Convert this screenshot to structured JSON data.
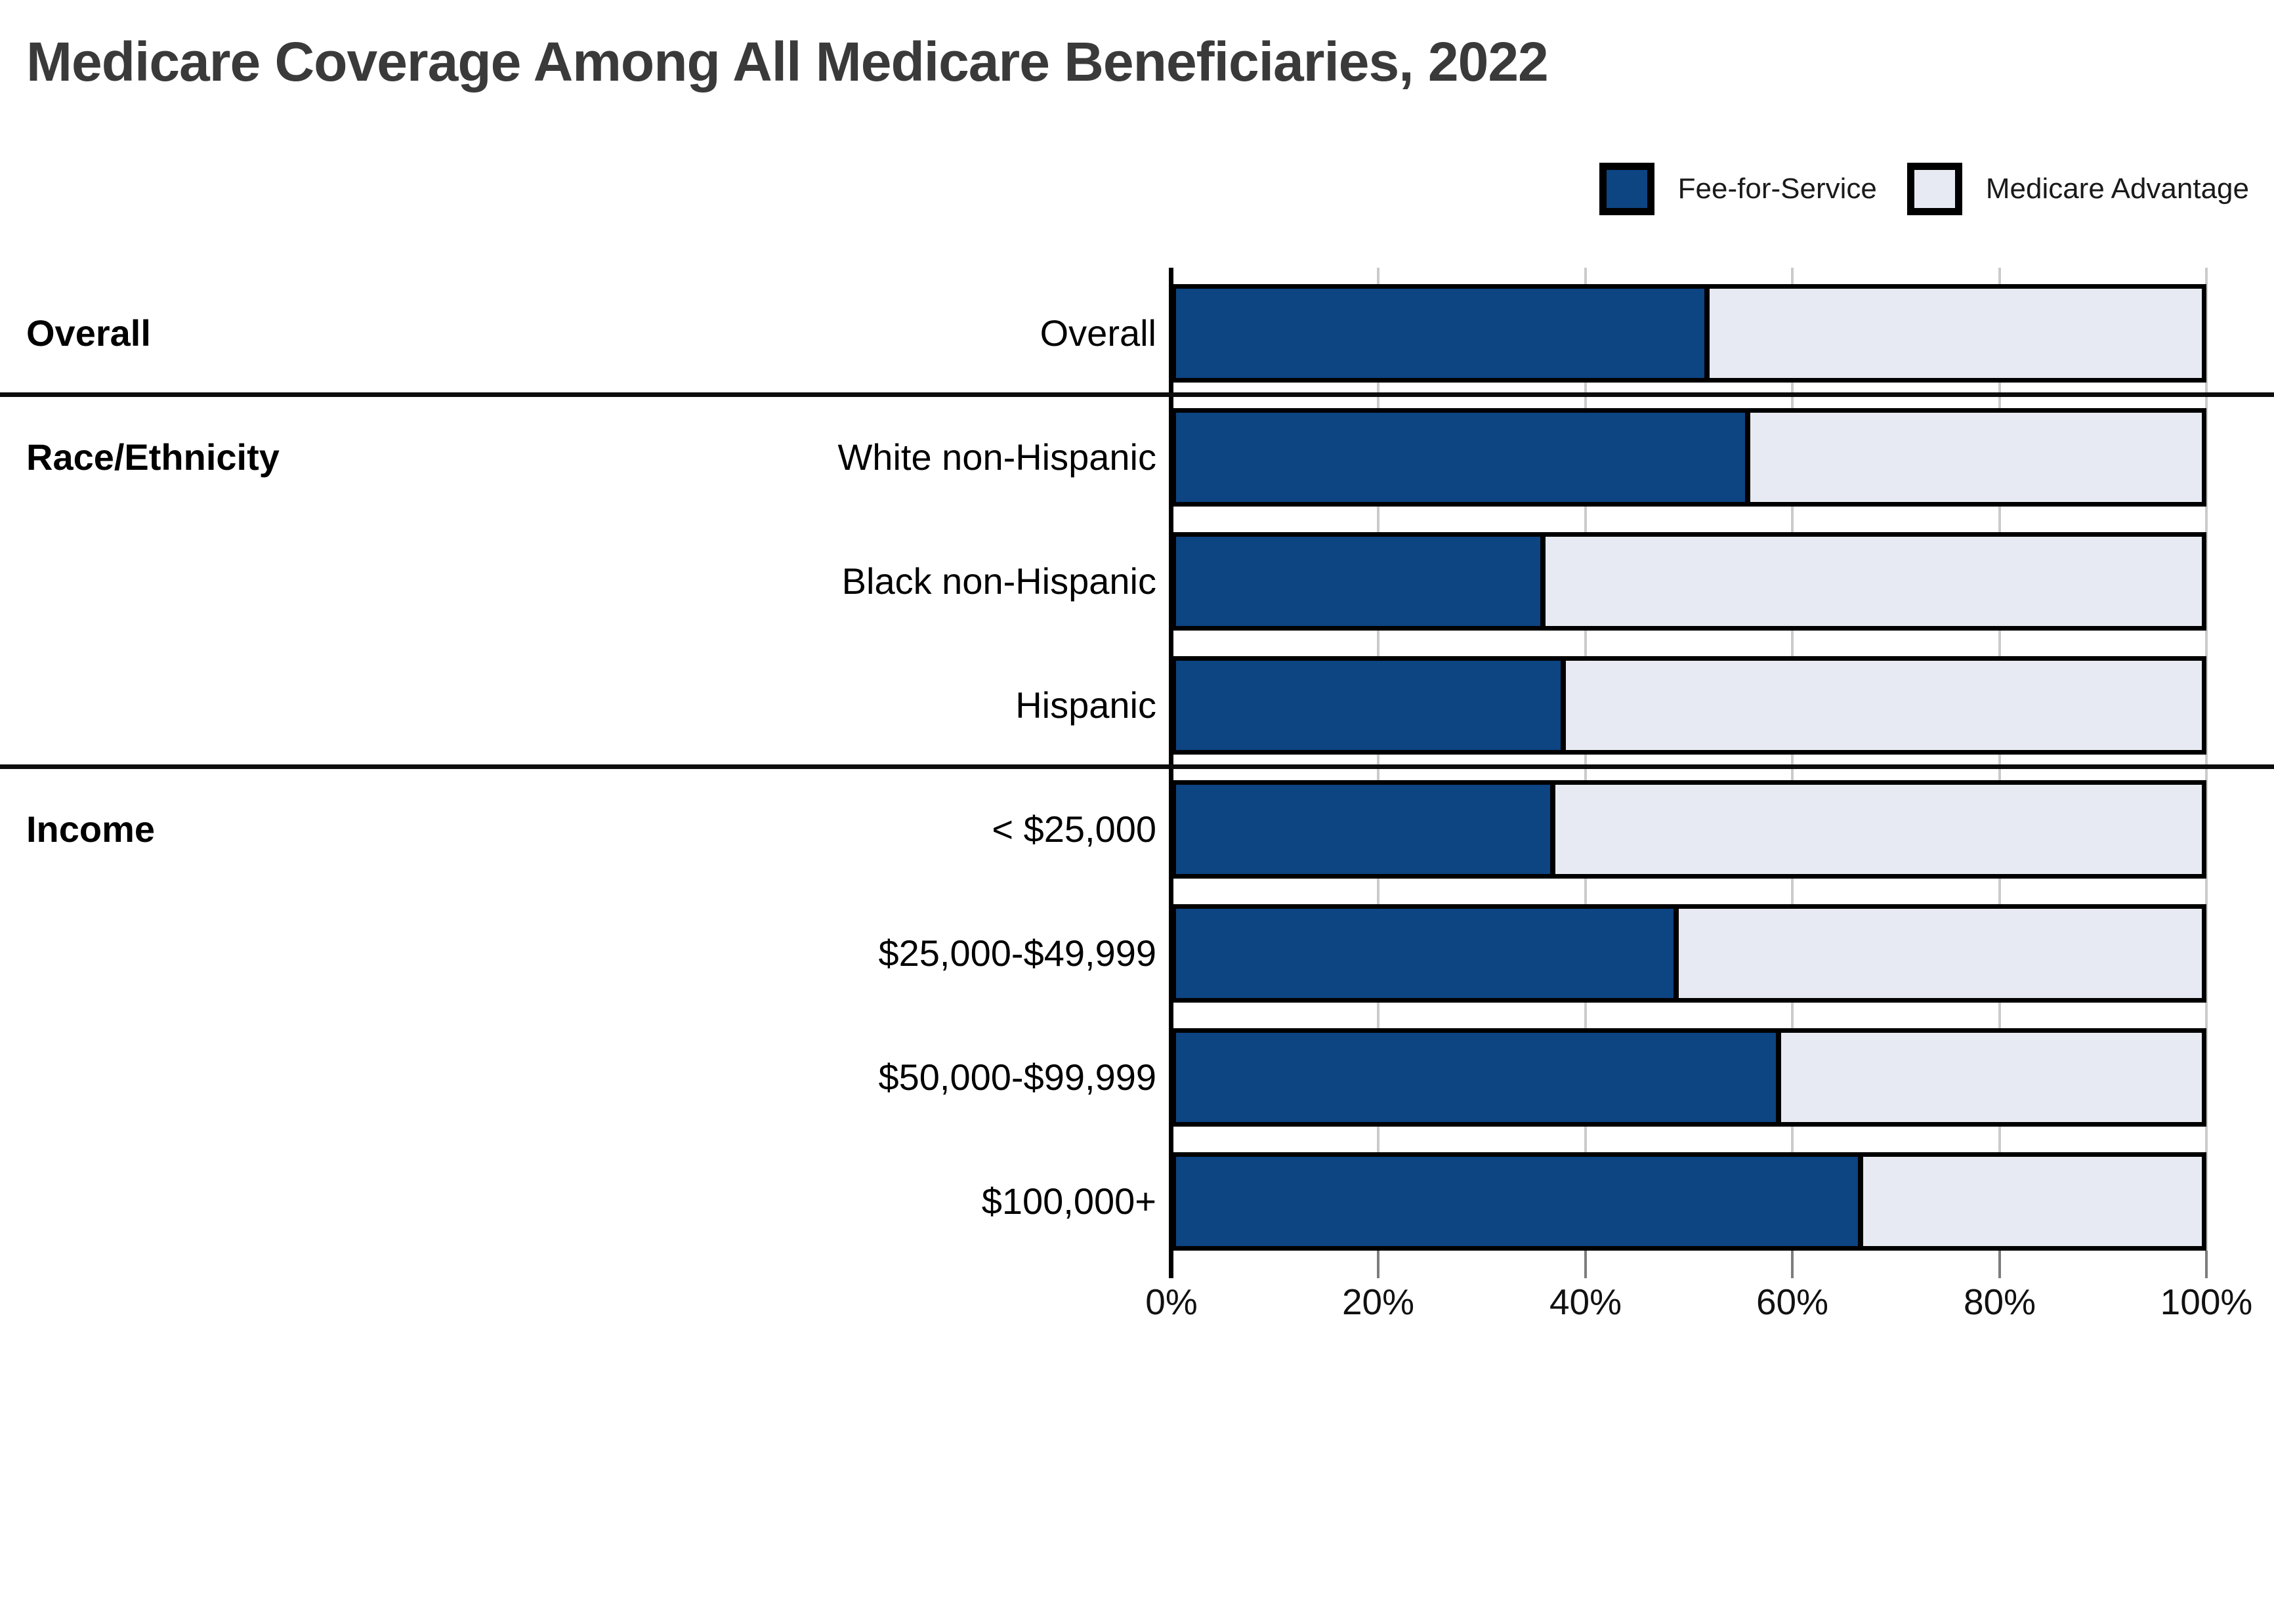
{
  "title": "Medicare Coverage Among All Medicare Beneficiaries, 2022",
  "colors": {
    "fee_for_service": "#0D4482",
    "medicare_advantage": "#E7EAF2",
    "bar_border": "#000000",
    "title_text": "#3a3a3a",
    "grid_line": "#cbcbcb"
  },
  "legend": {
    "items": [
      {
        "label": "Fee-for-Service",
        "color": "#0D4482"
      },
      {
        "label": "Medicare Advantage",
        "color": "#E7EAF2"
      }
    ]
  },
  "chart_data": {
    "type": "bar",
    "orientation": "horizontal",
    "stacked": true,
    "title": "Medicare Coverage Among All Medicare Beneficiaries, 2022",
    "xlabel": "",
    "ylabel": "",
    "xlim": [
      0,
      100
    ],
    "x_ticks": [
      "0%",
      "20%",
      "40%",
      "60%",
      "80%",
      "100%"
    ],
    "x_tick_values": [
      0,
      20,
      40,
      60,
      80,
      100
    ],
    "grid": true,
    "legend_position": "top-right",
    "categories": [
      "Overall",
      "White non-Hispanic",
      "Black non-Hispanic",
      "Hispanic",
      "< $25,000",
      "$25,000-$49,999",
      "$50,000-$99,999",
      "$100,000+"
    ],
    "groups": [
      {
        "label": "Overall",
        "first_row": 0,
        "row_count": 1
      },
      {
        "label": "Race/Ethnicity",
        "first_row": 1,
        "row_count": 3
      },
      {
        "label": "Income",
        "first_row": 4,
        "row_count": 4
      }
    ],
    "series": [
      {
        "name": "Fee-for-Service",
        "color": "#0D4482",
        "values": [
          52,
          56,
          36,
          38,
          37,
          49,
          59,
          67
        ]
      },
      {
        "name": "Medicare Advantage",
        "color": "#E7EAF2",
        "values": [
          48,
          44,
          64,
          62,
          63,
          51,
          41,
          33
        ]
      }
    ]
  }
}
